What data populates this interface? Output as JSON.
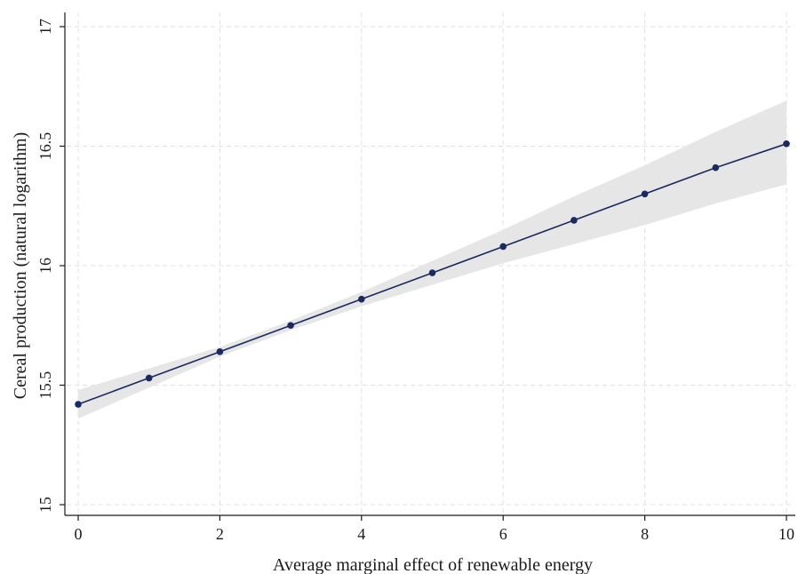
{
  "chart_data": {
    "type": "line",
    "title": "",
    "xlabel": "Average marginal effect of renewable energy",
    "ylabel": "Cereal production (natural logarithm)",
    "xlim": [
      0,
      10
    ],
    "ylim": [
      15,
      17
    ],
    "x_ticks": [
      "0",
      "2",
      "4",
      "6",
      "8",
      "10"
    ],
    "y_ticks": [
      "15",
      "15.5",
      "16",
      "16.5",
      "17"
    ],
    "grid": true,
    "legend": "none",
    "series": [
      {
        "x": [
          0,
          1,
          2,
          3,
          4,
          5,
          6,
          7,
          8,
          9,
          10
        ],
        "y": [
          15.42,
          15.53,
          15.64,
          15.75,
          15.86,
          15.97,
          16.08,
          16.19,
          16.3,
          16.41,
          16.51
        ],
        "ci_lower": [
          15.36,
          15.49,
          15.62,
          15.73,
          15.83,
          15.92,
          16.01,
          16.09,
          16.17,
          16.26,
          16.34
        ],
        "ci_upper": [
          15.48,
          15.57,
          15.66,
          15.77,
          15.89,
          16.02,
          16.15,
          16.29,
          16.42,
          16.56,
          16.69
        ]
      }
    ],
    "colors": {
      "line": "#1a2a5e",
      "marker": "#1a2a5e",
      "ci_band": "#e6e6e6",
      "grid": "#e0e0e0",
      "axis": "#1a1a1a"
    }
  }
}
